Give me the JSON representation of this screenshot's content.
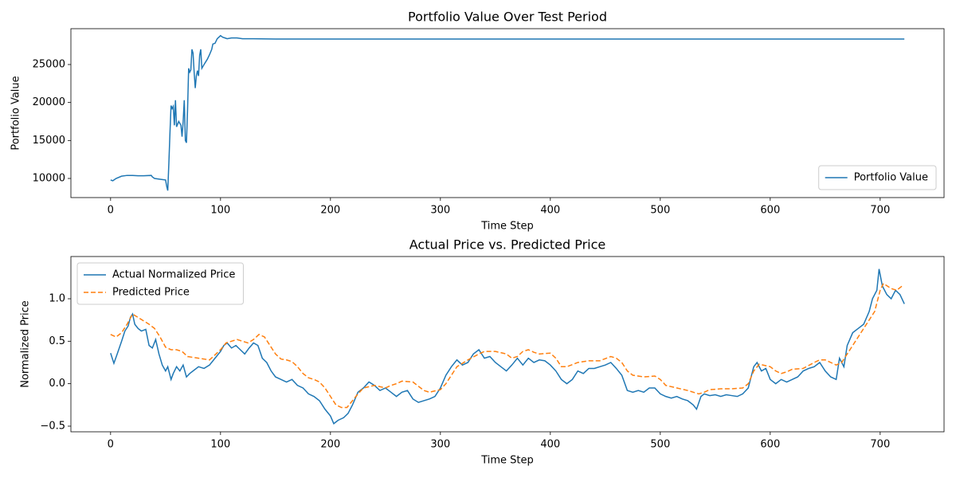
{
  "chart_data": [
    {
      "type": "line",
      "title": "Portfolio Value Over Test Period",
      "xlabel": "Time Step",
      "ylabel": "Portfolio Value",
      "xlim": [
        -36.1,
        758.1
      ],
      "xticks": [
        0,
        100,
        200,
        300,
        400,
        500,
        600,
        700
      ],
      "ylim": [
        7483,
        29720
      ],
      "yticks": [
        10000,
        15000,
        20000,
        25000
      ],
      "legend": "lower right",
      "series": [
        {
          "name": "Portfolio Value",
          "color": "#1f77b4",
          "linestyle": "solid",
          "x": [
            0,
            2,
            5,
            10,
            15,
            20,
            25,
            30,
            37,
            38,
            40,
            45,
            50,
            51,
            52,
            53,
            54,
            55,
            56,
            57,
            58,
            59,
            60,
            62,
            64,
            65,
            66,
            67,
            68,
            69,
            70,
            71,
            72,
            73,
            74,
            75,
            76,
            77,
            78,
            79,
            80,
            81,
            82,
            83,
            85,
            88,
            90,
            92,
            93,
            95,
            97,
            100,
            102,
            104,
            106,
            110,
            115,
            120,
            130,
            150,
            300,
            500,
            722
          ],
          "values": [
            9800,
            9700,
            10000,
            10300,
            10400,
            10400,
            10350,
            10350,
            10400,
            10200,
            10000,
            9900,
            9800,
            9000,
            8400,
            12000,
            16000,
            19600,
            19200,
            19500,
            17000,
            20300,
            16800,
            17500,
            17000,
            15500,
            17500,
            20300,
            15000,
            14700,
            19000,
            24500,
            24000,
            24300,
            27000,
            26500,
            24000,
            21900,
            23500,
            24200,
            23500,
            26200,
            27000,
            24500,
            25000,
            25700,
            26300,
            27000,
            27700,
            27800,
            28400,
            28800,
            28600,
            28500,
            28400,
            28500,
            28500,
            28400,
            28400,
            28350,
            28350,
            28350,
            28350
          ]
        }
      ]
    },
    {
      "type": "line",
      "title": "Actual Price vs. Predicted Price",
      "xlabel": "Time Step",
      "ylabel": "Normalized Price",
      "xlim": [
        -36.1,
        758.1
      ],
      "xticks": [
        0,
        100,
        200,
        300,
        400,
        500,
        600,
        700
      ],
      "ylim": [
        -0.566,
        1.497
      ],
      "yticks": [
        {
          "value": -0.5,
          "label": "−0.5"
        },
        {
          "value": 0,
          "label": "0.0"
        },
        0.5,
        {
          "value": 1,
          "label": "1.0"
        }
      ],
      "legend": "upper left",
      "series": [
        {
          "name": "Actual Normalized Price",
          "color": "#1f77b4",
          "linestyle": "solid",
          "x": [
            0,
            3,
            6,
            10,
            13,
            16,
            18,
            20,
            22,
            25,
            28,
            32,
            35,
            38,
            41,
            44,
            47,
            50,
            52,
            55,
            57,
            60,
            63,
            66,
            69,
            72,
            75,
            80,
            85,
            90,
            95,
            100,
            103,
            106,
            110,
            114,
            118,
            122,
            126,
            130,
            134,
            138,
            142,
            146,
            150,
            155,
            160,
            165,
            170,
            175,
            180,
            185,
            190,
            195,
            200,
            203,
            207,
            212,
            216,
            220,
            225,
            230,
            235,
            240,
            245,
            250,
            255,
            260,
            265,
            270,
            275,
            280,
            285,
            290,
            295,
            300,
            305,
            310,
            315,
            320,
            325,
            330,
            335,
            340,
            345,
            350,
            355,
            360,
            365,
            370,
            375,
            380,
            385,
            390,
            395,
            400,
            405,
            410,
            415,
            420,
            425,
            430,
            435,
            440,
            445,
            450,
            455,
            460,
            465,
            470,
            475,
            480,
            485,
            490,
            495,
            500,
            505,
            510,
            515,
            520,
            525,
            530,
            533,
            537,
            540,
            545,
            550,
            555,
            560,
            565,
            570,
            575,
            580,
            585,
            588,
            592,
            596,
            600,
            605,
            610,
            615,
            620,
            625,
            630,
            635,
            640,
            645,
            650,
            655,
            660,
            663,
            667,
            670,
            675,
            680,
            685,
            690,
            693,
            697,
            699,
            702,
            706,
            710,
            714,
            718,
            722
          ],
          "values": [
            0.36,
            0.24,
            0.35,
            0.5,
            0.62,
            0.68,
            0.78,
            0.82,
            0.7,
            0.65,
            0.62,
            0.64,
            0.45,
            0.42,
            0.52,
            0.35,
            0.22,
            0.15,
            0.2,
            0.05,
            0.12,
            0.2,
            0.15,
            0.22,
            0.08,
            0.12,
            0.15,
            0.2,
            0.18,
            0.22,
            0.3,
            0.38,
            0.45,
            0.48,
            0.42,
            0.45,
            0.4,
            0.35,
            0.42,
            0.48,
            0.45,
            0.3,
            0.25,
            0.15,
            0.08,
            0.05,
            0.02,
            0.05,
            -0.02,
            -0.05,
            -0.12,
            -0.15,
            -0.2,
            -0.3,
            -0.38,
            -0.47,
            -0.43,
            -0.4,
            -0.35,
            -0.25,
            -0.1,
            -0.05,
            0.02,
            -0.02,
            -0.08,
            -0.05,
            -0.1,
            -0.15,
            -0.1,
            -0.08,
            -0.18,
            -0.22,
            -0.2,
            -0.18,
            -0.15,
            -0.05,
            0.1,
            0.2,
            0.28,
            0.22,
            0.25,
            0.35,
            0.4,
            0.3,
            0.32,
            0.25,
            0.2,
            0.15,
            0.22,
            0.3,
            0.22,
            0.3,
            0.25,
            0.28,
            0.27,
            0.22,
            0.15,
            0.05,
            0,
            0.05,
            0.15,
            0.12,
            0.18,
            0.18,
            0.2,
            0.22,
            0.25,
            0.18,
            0.1,
            -0.08,
            -0.1,
            -0.08,
            -0.1,
            -0.05,
            -0.05,
            -0.12,
            -0.15,
            -0.17,
            -0.15,
            -0.18,
            -0.2,
            -0.25,
            -0.3,
            -0.15,
            -0.12,
            -0.14,
            -0.13,
            -0.15,
            -0.13,
            -0.14,
            -0.15,
            -0.12,
            -0.05,
            0.2,
            0.25,
            0.15,
            0.18,
            0.05,
            0,
            0.05,
            0.02,
            0.05,
            0.08,
            0.15,
            0.18,
            0.2,
            0.25,
            0.15,
            0.08,
            0.05,
            0.3,
            0.2,
            0.45,
            0.6,
            0.65,
            0.7,
            0.85,
            1,
            1.1,
            1.35,
            1.15,
            1.05,
            1,
            1.1,
            1.05,
            0.94
          ]
        },
        {
          "name": "Predicted Price",
          "color": "#ff7f0e",
          "linestyle": "dashed",
          "x": [
            0,
            5,
            10,
            15,
            20,
            25,
            30,
            35,
            40,
            45,
            50,
            55,
            60,
            65,
            70,
            80,
            90,
            100,
            105,
            110,
            115,
            120,
            125,
            130,
            135,
            140,
            145,
            150,
            155,
            160,
            165,
            170,
            175,
            180,
            185,
            190,
            195,
            200,
            205,
            210,
            215,
            220,
            225,
            230,
            240,
            250,
            255,
            260,
            265,
            275,
            285,
            290,
            300,
            305,
            310,
            315,
            325,
            335,
            340,
            350,
            360,
            365,
            370,
            375,
            380,
            385,
            390,
            400,
            405,
            410,
            415,
            425,
            435,
            445,
            455,
            460,
            465,
            470,
            475,
            485,
            495,
            500,
            505,
            515,
            525,
            530,
            535,
            540,
            545,
            555,
            565,
            575,
            580,
            585,
            590,
            600,
            605,
            610,
            615,
            620,
            630,
            640,
            645,
            650,
            660,
            665,
            670,
            680,
            690,
            695,
            700,
            703,
            710,
            715,
            720
          ],
          "values": [
            0.58,
            0.55,
            0.6,
            0.7,
            0.82,
            0.78,
            0.74,
            0.7,
            0.65,
            0.55,
            0.43,
            0.4,
            0.4,
            0.38,
            0.32,
            0.3,
            0.28,
            0.4,
            0.48,
            0.5,
            0.52,
            0.5,
            0.48,
            0.52,
            0.58,
            0.55,
            0.45,
            0.35,
            0.29,
            0.28,
            0.26,
            0.2,
            0.12,
            0.07,
            0.05,
            0.02,
            -0.05,
            -0.15,
            -0.25,
            -0.28,
            -0.28,
            -0.2,
            -0.12,
            -0.05,
            -0.02,
            -0.05,
            -0.02,
            0,
            0.03,
            0.02,
            -0.08,
            -0.1,
            -0.07,
            0,
            0.1,
            0.2,
            0.28,
            0.35,
            0.38,
            0.38,
            0.35,
            0.3,
            0.32,
            0.38,
            0.4,
            0.37,
            0.35,
            0.36,
            0.3,
            0.2,
            0.2,
            0.25,
            0.27,
            0.27,
            0.32,
            0.3,
            0.25,
            0.15,
            0.1,
            0.08,
            0.09,
            0.05,
            -0.02,
            -0.05,
            -0.08,
            -0.1,
            -0.12,
            -0.1,
            -0.07,
            -0.06,
            -0.06,
            -0.05,
            0,
            0.15,
            0.23,
            0.2,
            0.15,
            0.12,
            0.14,
            0.17,
            0.18,
            0.25,
            0.28,
            0.28,
            0.22,
            0.25,
            0.35,
            0.55,
            0.75,
            0.85,
            1.1,
            1.18,
            1.12,
            1.1,
            1.15
          ]
        }
      ]
    }
  ]
}
